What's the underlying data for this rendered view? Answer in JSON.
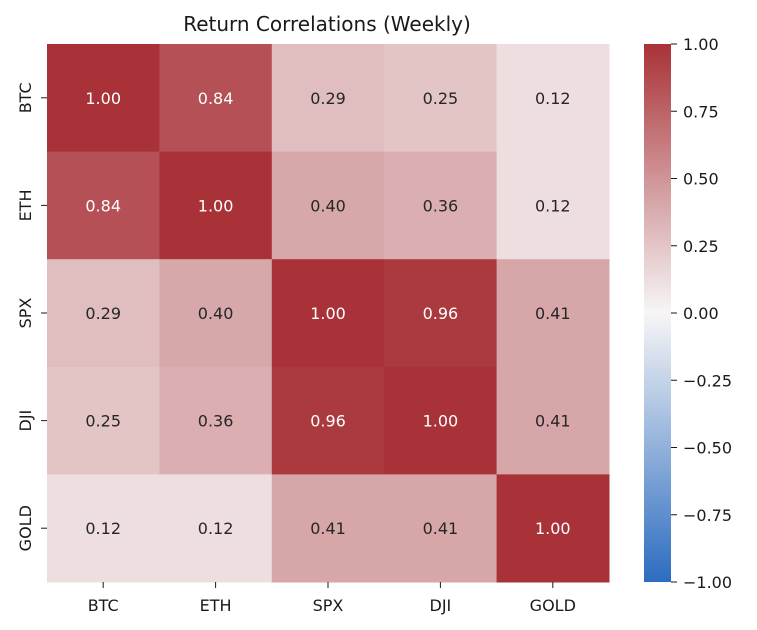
{
  "chart_data": {
    "type": "heatmap",
    "title": "Return Correlations (Weekly)",
    "xlabel": "",
    "ylabel": "",
    "x_categories": [
      "BTC",
      "ETH",
      "SPX",
      "DJI",
      "GOLD"
    ],
    "y_categories": [
      "BTC",
      "ETH",
      "SPX",
      "DJI",
      "GOLD"
    ],
    "values": [
      [
        1.0,
        0.84,
        0.29,
        0.25,
        0.12
      ],
      [
        0.84,
        1.0,
        0.4,
        0.36,
        0.12
      ],
      [
        0.29,
        0.4,
        1.0,
        0.96,
        0.41
      ],
      [
        0.25,
        0.36,
        0.96,
        1.0,
        0.41
      ],
      [
        0.12,
        0.12,
        0.41,
        0.41,
        1.0
      ]
    ],
    "value_format": "0.00",
    "colormap": "coolwarm",
    "color_stops": {
      "low": "#2c6cc0",
      "mid": "#f7f6f6",
      "high": "#a83237"
    },
    "vmin": -1.0,
    "vmax": 1.0,
    "colorbar_ticks": [
      "1.00",
      "0.75",
      "0.50",
      "0.25",
      "0.00",
      "−0.25",
      "−0.50",
      "−0.75",
      "−1.00"
    ],
    "colorbar_values": [
      1.0,
      0.75,
      0.5,
      0.25,
      0.0,
      -0.25,
      -0.5,
      -0.75,
      -1.0
    ],
    "grid": false
  }
}
